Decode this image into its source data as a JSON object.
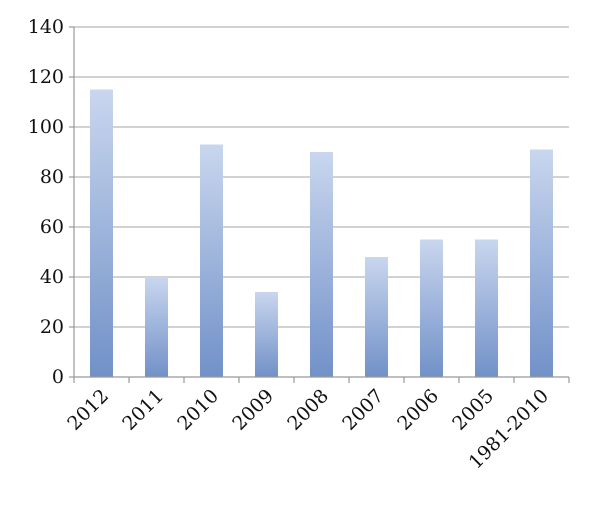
{
  "chart_data": {
    "type": "bar",
    "title": "",
    "xlabel": "",
    "ylabel": "",
    "categories": [
      "2012",
      "2011",
      "2010",
      "2009",
      "2008",
      "2007",
      "2006",
      "2005",
      "1981-2010"
    ],
    "values": [
      115,
      40,
      93,
      34,
      90,
      48,
      55,
      55,
      91
    ],
    "ylim": [
      0,
      140
    ],
    "yticks": [
      "0",
      "20",
      "40",
      "60",
      "80",
      "100",
      "120",
      "140"
    ],
    "grid": true,
    "legend": "none",
    "colors": {
      "bar_top": "#c9d6ee",
      "bar_bottom": "#7191c8",
      "grid": "#a6a6a6",
      "axis": "#999999",
      "text": "#111111"
    }
  }
}
